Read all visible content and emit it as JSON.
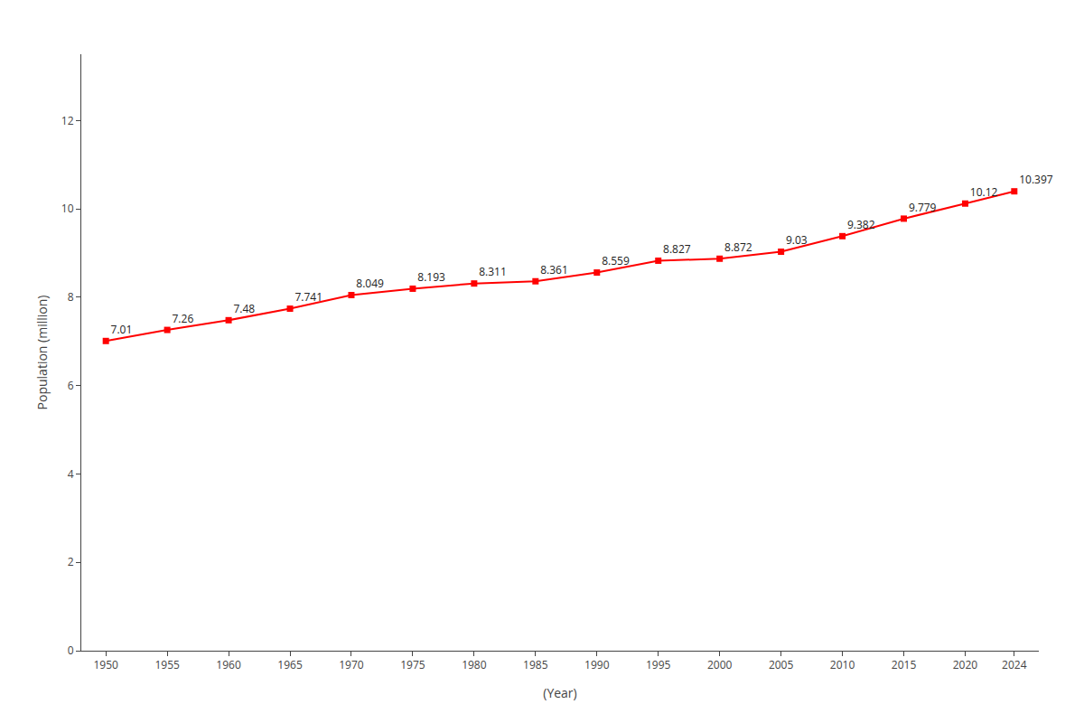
{
  "chart_data": {
    "type": "line",
    "xlabel": "(Year)",
    "ylabel": "Population (million)",
    "x": [
      1950,
      1955,
      1960,
      1965,
      1970,
      1975,
      1980,
      1985,
      1990,
      1995,
      2000,
      2005,
      2010,
      2015,
      2020,
      2024
    ],
    "values": [
      7.01,
      7.26,
      7.48,
      7.741,
      8.049,
      8.193,
      8.311,
      8.361,
      8.559,
      8.827,
      8.872,
      9.03,
      9.382,
      9.779,
      10.12,
      10.397
    ],
    "color": "#ff0000",
    "marker": "square",
    "line_style": "solid",
    "xlim": [
      1948,
      2026
    ],
    "ylim": [
      0,
      13.5
    ],
    "xticks": [
      1950,
      1955,
      1960,
      1965,
      1970,
      1975,
      1980,
      1985,
      1990,
      1995,
      2000,
      2005,
      2010,
      2015,
      2020,
      2024
    ],
    "yticks": [
      0,
      2,
      4,
      6,
      8,
      10,
      12
    ],
    "grid": false,
    "data_labels": true
  }
}
